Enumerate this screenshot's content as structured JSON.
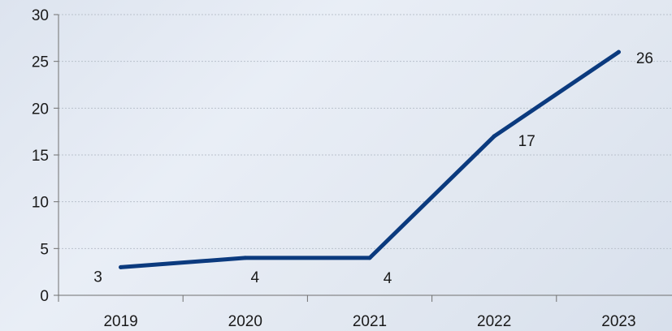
{
  "chart_data": {
    "type": "line",
    "categories": [
      "2019",
      "2020",
      "2021",
      "2022",
      "2023"
    ],
    "series": [
      {
        "values": [
          3,
          4,
          4,
          17,
          26
        ],
        "data_labels": [
          "3",
          "4",
          "4",
          "17",
          "26"
        ]
      }
    ],
    "yticks": [
      "0",
      "5",
      "10",
      "15",
      "20",
      "25",
      "30"
    ],
    "ylim": [
      0,
      30
    ],
    "title": "",
    "xlabel": "",
    "ylabel": "",
    "grid": true,
    "legend": "none",
    "colors": {
      "line": "#0b3a7e",
      "grid": "#b9c1cc",
      "axis": "#707070"
    }
  }
}
